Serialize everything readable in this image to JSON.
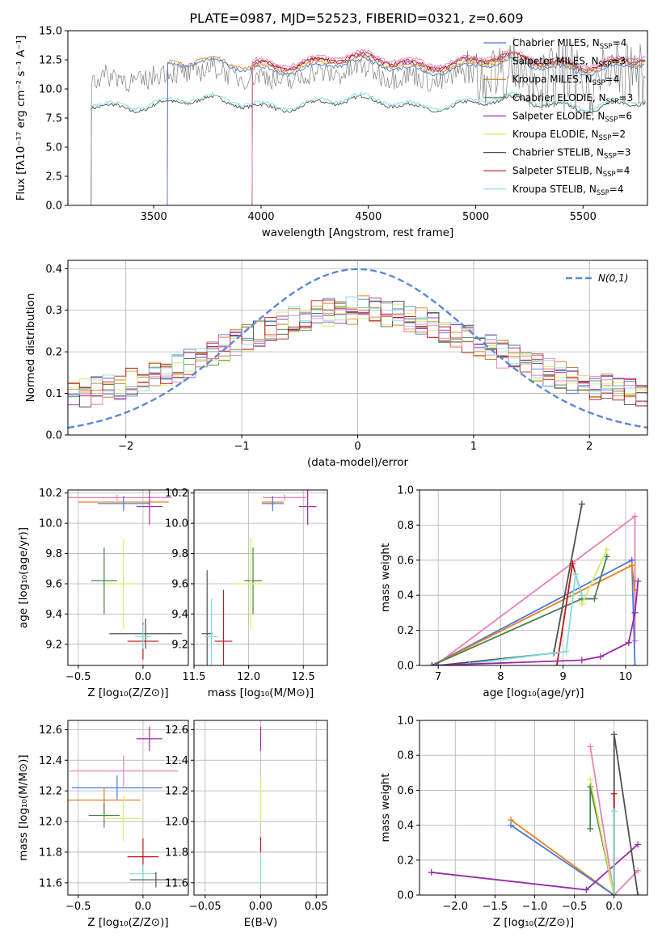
{
  "title": "PLATE=0987, MJD=52523, FIBERID=0321, z=0.609",
  "colors": {
    "chabrier_miles": "#4a78d8",
    "salpeter_miles": "#e8801a",
    "kroupa_miles": "#b87818",
    "chabrier_elodie": "#4a8050",
    "salpeter_elodie": "#9a2aa8",
    "kroupa_elodie": "#d8ea60",
    "chabrier_stelib": "#505050",
    "salpeter_stelib": "#c01818",
    "kroupa_stelib": "#80dce0",
    "pink": "#e680b8",
    "data": "#808080"
  },
  "chart_data": [
    {
      "id": "spectrum",
      "type": "line",
      "xlabel": "wavelength [Angstrom, rest frame]",
      "ylabel": "Flux [fλ10⁻¹⁷ erg cm⁻² s⁻¹ A⁻¹]",
      "xlim": [
        3100,
        5800
      ],
      "ylim": [
        0,
        15
      ],
      "xticks": [
        "3500",
        "4000",
        "4500",
        "5000",
        "5500"
      ],
      "yticks": [
        "0.0",
        "2.5",
        "5.0",
        "7.5",
        "10.0",
        "12.5",
        "15.0"
      ],
      "grid": false,
      "legend_position": "top-right",
      "legend": [
        {
          "label": "Chabrier MILES, N",
          "sub": "SSP",
          "tail": "=4",
          "color": "#4a78d8"
        },
        {
          "label": "Salpeter MILES, N",
          "sub": "SSP",
          "tail": "=3",
          "color": "#e8801a"
        },
        {
          "label": "Kroupa MILES, N",
          "sub": "SSP",
          "tail": "=4",
          "color": "#b87818"
        },
        {
          "label": "Chabrier ELODIE, N",
          "sub": "SSP",
          "tail": "=3",
          "color": "#4a8050"
        },
        {
          "label": "Salpeter ELODIE, N",
          "sub": "SSP",
          "tail": "=6",
          "color": "#9a2aa8"
        },
        {
          "label": "Kroupa ELODIE, N",
          "sub": "SSP",
          "tail": "=2",
          "color": "#d8ea60"
        },
        {
          "label": "Chabrier STELIB, N",
          "sub": "SSP",
          "tail": "=3",
          "color": "#505050"
        },
        {
          "label": "Salpeter STELIB, N",
          "sub": "SSP",
          "tail": "=4",
          "color": "#c01818"
        },
        {
          "label": "Kroupa STELIB, N",
          "sub": "SSP",
          "tail": "=4",
          "color": "#80dce0"
        }
      ],
      "segments": [
        {
          "start": 3210,
          "end": 5790,
          "flux_level": 9.0,
          "note_color": "#505050"
        },
        {
          "start": 3565,
          "end": 5790,
          "flux_level": 12.2
        },
        {
          "start": 3960,
          "end": 5790,
          "flux_level": 12.6
        }
      ]
    },
    {
      "id": "residuals",
      "type": "histogram",
      "xlabel": "(data-model)/error",
      "ylabel": "Normed distribution",
      "xlim": [
        -2.5,
        2.5
      ],
      "ylim": [
        0,
        0.42
      ],
      "xticks": [
        "−2",
        "−1",
        "0",
        "1",
        "2"
      ],
      "yticks": [
        "0.0",
        "0.1",
        "0.2",
        "0.3",
        "0.4"
      ],
      "grid": true,
      "legend_position": "top-right",
      "legend_label": "N(0,1)",
      "curve": {
        "mean": 0,
        "sigma": 1,
        "color": "#5a88d8"
      }
    },
    {
      "id": "age_vs_Z",
      "type": "scatter",
      "xlabel": "Z [log₁₀(Z/Z⊙)]",
      "ylabel": "age  [log₁₀(age/yr)]",
      "xlim": [
        -0.58,
        0.35
      ],
      "ylim": [
        9.06,
        10.22
      ],
      "xticks": [
        "−0.5",
        "0.0"
      ],
      "yticks": [
        "9.2",
        "9.4",
        "9.6",
        "9.8",
        "10.0",
        "10.2"
      ],
      "points": [
        {
          "x": -0.15,
          "y": 10.14,
          "xerr": 0.35,
          "yerr": 0.04,
          "color": "#e8801a"
        },
        {
          "x": -0.2,
          "y": 10.17,
          "xerr": 0.42,
          "yerr": 0.02,
          "color": "#e680b8"
        },
        {
          "x": -0.15,
          "y": 10.13,
          "xerr": 0.2,
          "yerr": 0.05,
          "color": "#4a78d8"
        },
        {
          "x": 0.05,
          "y": 10.11,
          "xerr": 0.1,
          "yerr": 0.12,
          "color": "#9a2aa8"
        },
        {
          "x": -0.3,
          "y": 9.62,
          "xerr": 0.1,
          "yerr": 0.22,
          "color": "#4a8050"
        },
        {
          "x": -0.15,
          "y": 9.6,
          "xerr": 0.12,
          "yerr": 0.3,
          "color": "#d8ea60"
        },
        {
          "x": 0.02,
          "y": 9.27,
          "xerr": 0.28,
          "yerr": 0.1,
          "color": "#505050"
        },
        {
          "x": 0.0,
          "y": 9.22,
          "xerr": 0.12,
          "yerr": 0.12,
          "color": "#c01818"
        },
        {
          "x": 0.0,
          "y": 9.25,
          "xerr": 0.06,
          "yerr": 0.08,
          "color": "#80dce0"
        }
      ]
    },
    {
      "id": "age_vs_mass",
      "type": "scatter",
      "xlabel": "mass [log₁₀(M/M⊙)]",
      "xlim": [
        11.5,
        12.72
      ],
      "ylim": [
        9.06,
        10.22
      ],
      "xticks": [
        "11.5",
        "12.0",
        "12.5"
      ],
      "yticks": [
        "9.2",
        "9.4",
        "9.6",
        "9.8",
        "10.0",
        "10.2"
      ],
      "points": [
        {
          "x": 12.22,
          "y": 10.14,
          "xerr": 0.1,
          "yerr": 0.04,
          "color": "#e8801a"
        },
        {
          "x": 12.33,
          "y": 10.17,
          "xerr": 0.2,
          "yerr": 0.02,
          "color": "#e680b8"
        },
        {
          "x": 12.22,
          "y": 10.13,
          "xerr": 0.1,
          "yerr": 0.05,
          "color": "#4a78d8"
        },
        {
          "x": 12.54,
          "y": 10.11,
          "xerr": 0.08,
          "yerr": 0.12,
          "color": "#9a2aa8"
        },
        {
          "x": 12.04,
          "y": 9.62,
          "xerr": 0.08,
          "yerr": 0.22,
          "color": "#4a8050"
        },
        {
          "x": 12.02,
          "y": 9.6,
          "xerr": 0.15,
          "yerr": 0.3,
          "color": "#d8ea60"
        },
        {
          "x": 11.62,
          "y": 9.27,
          "xerr": 0.05,
          "yerr": 0.42,
          "color": "#505050"
        },
        {
          "x": 11.77,
          "y": 9.22,
          "xerr": 0.08,
          "yerr": 0.34,
          "color": "#c01818"
        },
        {
          "x": 11.66,
          "y": 9.25,
          "xerr": 0.06,
          "yerr": 0.25,
          "color": "#80dce0"
        }
      ]
    },
    {
      "id": "mass_weight_vs_age",
      "type": "line",
      "xlabel": "age  [log₁₀(age/yr)]",
      "ylabel": "mass weight",
      "xlim": [
        6.7,
        10.35
      ],
      "ylim": [
        0,
        1
      ],
      "xticks": [
        "7",
        "8",
        "9",
        "10"
      ],
      "yticks": [
        "0.0",
        "0.2",
        "0.4",
        "0.6",
        "0.8",
        "1.0"
      ],
      "grid": true,
      "series": [
        {
          "color": "#e680b8",
          "x": [
            6.95,
            10.15,
            10.15
          ],
          "y": [
            0.0,
            0.85,
            0.14
          ]
        },
        {
          "color": "#4a78d8",
          "x": [
            6.9,
            10.1,
            10.15
          ],
          "y": [
            0.0,
            0.6,
            0.0
          ]
        },
        {
          "color": "#e8801a",
          "x": [
            6.9,
            10.1,
            10.15
          ],
          "y": [
            0.0,
            0.57,
            0.43
          ]
        },
        {
          "color": "#4a8050",
          "x": [
            6.9,
            9.3,
            9.5,
            9.7
          ],
          "y": [
            0.0,
            0.38,
            0.38,
            0.62
          ]
        },
        {
          "color": "#d8ea60",
          "x": [
            9.3,
            9.7
          ],
          "y": [
            0.35,
            0.66
          ]
        },
        {
          "color": "#505050",
          "x": [
            7.0,
            8.85,
            9.3
          ],
          "y": [
            0.0,
            0.07,
            0.92
          ]
        },
        {
          "color": "#c01818",
          "x": [
            8.9,
            9.15,
            9.3
          ],
          "y": [
            0.0,
            0.58,
            0.4
          ]
        },
        {
          "color": "#80dce0",
          "x": [
            7.5,
            9.05,
            9.2,
            9.3
          ],
          "y": [
            0.01,
            0.08,
            0.52,
            0.4
          ]
        },
        {
          "color": "#9a2aa8",
          "x": [
            6.9,
            9.3,
            9.6,
            10.05,
            10.15,
            10.2
          ],
          "y": [
            0.0,
            0.03,
            0.05,
            0.13,
            0.3,
            0.48
          ]
        }
      ]
    },
    {
      "id": "mass_vs_Z",
      "type": "scatter",
      "xlabel": "Z [log₁₀(Z/Z⊙)]",
      "ylabel": "mass [log₁₀(M/M⊙)]",
      "xlim": [
        -0.58,
        0.35
      ],
      "ylim": [
        11.52,
        12.66
      ],
      "xticks": [
        "−0.5",
        "0.0"
      ],
      "yticks": [
        "11.6",
        "11.8",
        "12.0",
        "12.2",
        "12.4",
        "12.6"
      ],
      "points": [
        {
          "x": 0.05,
          "y": 12.54,
          "xerr": 0.1,
          "yerr": 0.08,
          "color": "#9a2aa8"
        },
        {
          "x": -0.15,
          "y": 12.33,
          "xerr": 0.42,
          "yerr": 0.1,
          "color": "#e680b8"
        },
        {
          "x": -0.2,
          "y": 12.22,
          "xerr": 0.35,
          "yerr": 0.08,
          "color": "#4a78d8"
        },
        {
          "x": -0.3,
          "y": 12.14,
          "xerr": 0.28,
          "yerr": 0.08,
          "color": "#e8801a"
        },
        {
          "x": -0.3,
          "y": 12.04,
          "xerr": 0.12,
          "yerr": 0.08,
          "color": "#4a8050"
        },
        {
          "x": -0.15,
          "y": 12.02,
          "xerr": 0.15,
          "yerr": 0.15,
          "color": "#d8ea60"
        },
        {
          "x": 0.0,
          "y": 11.77,
          "xerr": 0.12,
          "yerr": 0.12,
          "color": "#c01818"
        },
        {
          "x": 0.0,
          "y": 11.66,
          "xerr": 0.1,
          "yerr": 0.06,
          "color": "#80dce0"
        },
        {
          "x": 0.1,
          "y": 11.62,
          "xerr": 0.2,
          "yerr": 0.05,
          "color": "#505050"
        }
      ]
    },
    {
      "id": "mass_vs_ebv",
      "type": "scatter",
      "xlabel": "E(B-V)",
      "xlim": [
        -0.06,
        0.06
      ],
      "ylim": [
        11.52,
        12.66
      ],
      "xticks": [
        "−0.05",
        "0.00",
        "0.05"
      ],
      "yticks": [
        "11.6",
        "11.8",
        "12.0",
        "12.2",
        "12.4",
        "12.6"
      ],
      "points": [
        {
          "x": 0,
          "y": 12.54,
          "yerr": 0.08,
          "color": "#9a2aa8"
        },
        {
          "x": 0,
          "y": 12.14,
          "yerr": 0.15,
          "color": "#d8ea60"
        },
        {
          "x": 0,
          "y": 11.85,
          "yerr": 0.05,
          "color": "#c01818"
        },
        {
          "x": 0,
          "y": 11.66,
          "yerr": 0.1,
          "color": "#80dce0"
        }
      ]
    },
    {
      "id": "mass_weight_vs_Z",
      "type": "line",
      "xlabel": "Z [log₁₀(Z/Z⊙)]",
      "ylabel": "mass weight",
      "xlim": [
        -2.45,
        0.42
      ],
      "ylim": [
        0,
        1
      ],
      "xticks": [
        "−2.0",
        "−1.5",
        "−1.0",
        "−0.5",
        "0.0"
      ],
      "yticks": [
        "0.0",
        "0.2",
        "0.4",
        "0.6",
        "0.8",
        "1.0"
      ],
      "grid": true,
      "series": [
        {
          "color": "#e8801a",
          "x": [
            -1.3,
            0.0
          ],
          "y": [
            0.43,
            0.0
          ]
        },
        {
          "color": "#4a78d8",
          "x": [
            -1.3,
            0.0
          ],
          "y": [
            0.4,
            0.0
          ]
        },
        {
          "color": "#9a2aa8",
          "x": [
            -2.3,
            -0.35,
            0.3
          ],
          "y": [
            0.13,
            0.03,
            0.29
          ]
        },
        {
          "color": "#e680b8",
          "x": [
            -0.3,
            0.0,
            0.3
          ],
          "y": [
            0.85,
            0.0,
            0.14
          ]
        },
        {
          "color": "#4a8050",
          "x": [
            -0.3,
            -0.3,
            0.0
          ],
          "y": [
            0.38,
            0.62,
            0.0
          ]
        },
        {
          "color": "#d8ea60",
          "x": [
            -0.3,
            0.0
          ],
          "y": [
            0.66,
            0.0
          ]
        },
        {
          "color": "#505050",
          "x": [
            0.0,
            0.0,
            0.3
          ],
          "y": [
            0.0,
            0.92,
            0.0
          ]
        },
        {
          "color": "#c01818",
          "x": [
            0.0,
            0.0
          ],
          "y": [
            0.0,
            0.58
          ]
        },
        {
          "color": "#80dce0",
          "x": [
            0.0,
            0.0
          ],
          "y": [
            0.0,
            0.48
          ]
        }
      ]
    }
  ]
}
